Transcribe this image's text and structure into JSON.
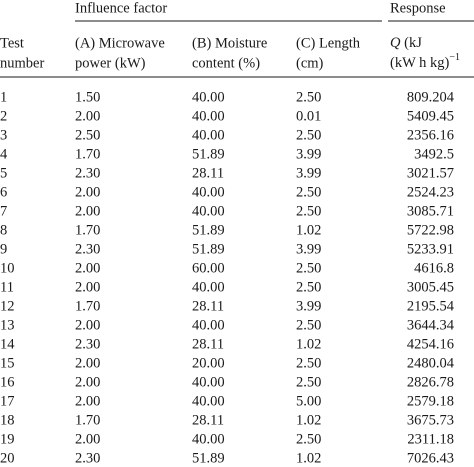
{
  "table": {
    "groups": [
      "Influence factor",
      "Response"
    ],
    "header": [
      [
        "Test",
        "number"
      ],
      [
        "(A) Microwave",
        "power (kW)"
      ],
      [
        "(B) Moisture",
        "content (%)"
      ],
      [
        "(C) Length",
        "(cm)"
      ]
    ],
    "response_header": {
      "symbol": "Q",
      "line1": " (kJ",
      "line2": "(kW h kg)",
      "exponent": "−1"
    },
    "rows": [
      [
        "1",
        "1.50",
        "40.00",
        "2.50",
        "809.204"
      ],
      [
        "2",
        "2.00",
        "40.00",
        "0.01",
        "5409.45"
      ],
      [
        "3",
        "2.50",
        "40.00",
        "2.50",
        "2356.16"
      ],
      [
        "4",
        "1.70",
        "51.89",
        "3.99",
        "3492.5"
      ],
      [
        "5",
        "2.30",
        "28.11",
        "3.99",
        "3021.57"
      ],
      [
        "6",
        "2.00",
        "40.00",
        "2.50",
        "2524.23"
      ],
      [
        "7",
        "2.00",
        "40.00",
        "2.50",
        "3085.71"
      ],
      [
        "8",
        "1.70",
        "51.89",
        "1.02",
        "5722.98"
      ],
      [
        "9",
        "2.30",
        "51.89",
        "3.99",
        "5233.91"
      ],
      [
        "10",
        "2.00",
        "60.00",
        "2.50",
        "4616.8"
      ],
      [
        "11",
        "2.00",
        "40.00",
        "2.50",
        "3005.45"
      ],
      [
        "12",
        "1.70",
        "28.11",
        "3.99",
        "2195.54"
      ],
      [
        "13",
        "2.00",
        "40.00",
        "2.50",
        "3644.34"
      ],
      [
        "14",
        "2.30",
        "28.11",
        "1.02",
        "4254.16"
      ],
      [
        "15",
        "2.00",
        "20.00",
        "2.50",
        "2480.04"
      ],
      [
        "16",
        "2.00",
        "40.00",
        "2.50",
        "2826.78"
      ],
      [
        "17",
        "2.00",
        "40.00",
        "5.00",
        "2579.18"
      ],
      [
        "18",
        "1.70",
        "28.11",
        "1.02",
        "3675.73"
      ],
      [
        "19",
        "2.00",
        "40.00",
        "2.50",
        "2311.18"
      ],
      [
        "20",
        "2.30",
        "51.89",
        "1.02",
        "7026.43"
      ]
    ]
  }
}
